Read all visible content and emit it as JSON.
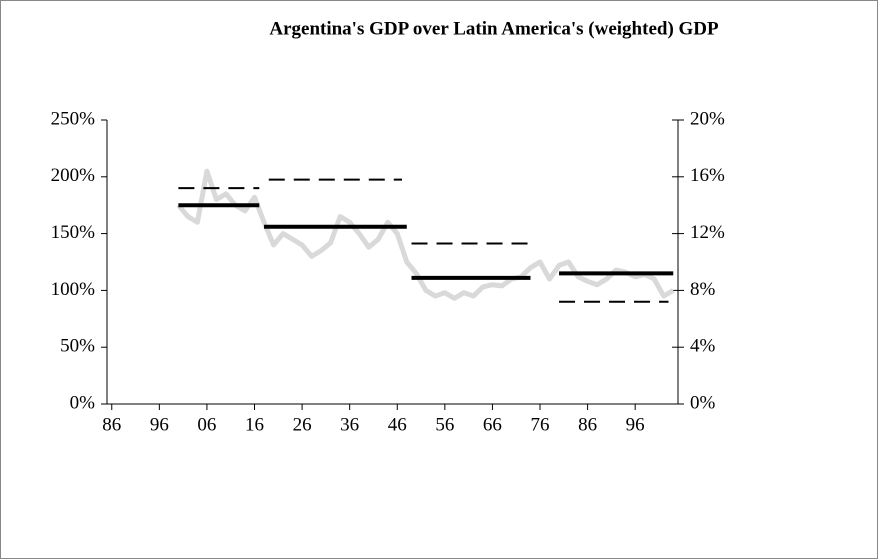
{
  "chart_data": {
    "type": "line",
    "title": "Argentina's GDP over Latin America's (weighted) GDP",
    "xlim": [
      1885,
      2005
    ],
    "xticks": [
      {
        "value": 1886,
        "label": "86"
      },
      {
        "value": 1896,
        "label": "96"
      },
      {
        "value": 1906,
        "label": "06"
      },
      {
        "value": 1916,
        "label": "16"
      },
      {
        "value": 1926,
        "label": "26"
      },
      {
        "value": 1936,
        "label": "36"
      },
      {
        "value": 1946,
        "label": "46"
      },
      {
        "value": 1956,
        "label": "56"
      },
      {
        "value": 1966,
        "label": "66"
      },
      {
        "value": 1976,
        "label": "76"
      },
      {
        "value": 1986,
        "label": "86"
      },
      {
        "value": 1996,
        "label": "96"
      }
    ],
    "ylim": [
      0,
      250
    ],
    "yticks": [
      {
        "value": 0,
        "label": "0%"
      },
      {
        "value": 50,
        "label": "50%"
      },
      {
        "value": 100,
        "label": "100%"
      },
      {
        "value": 150,
        "label": "150%"
      },
      {
        "value": 200,
        "label": "200%"
      },
      {
        "value": 250,
        "label": "250%"
      }
    ],
    "y2lim": [
      0,
      20
    ],
    "y2ticks": [
      {
        "value": 0,
        "label": "0%"
      },
      {
        "value": 4,
        "label": "4%"
      },
      {
        "value": 8,
        "label": "8%"
      },
      {
        "value": 12,
        "label": "12%"
      },
      {
        "value": 16,
        "label": "16%"
      },
      {
        "value": 20,
        "label": "20%"
      }
    ],
    "series": [
      {
        "color": "#d9d9d9",
        "width": 5,
        "x": [
          1900,
          1902,
          1904,
          1906,
          1908,
          1910,
          1912,
          1914,
          1916,
          1918,
          1920,
          1922,
          1924,
          1926,
          1928,
          1930,
          1932,
          1934,
          1936,
          1938,
          1940,
          1942,
          1944,
          1946,
          1948,
          1950,
          1952,
          1954,
          1956,
          1958,
          1960,
          1962,
          1964,
          1966,
          1968,
          1970,
          1972,
          1974,
          1976,
          1978,
          1980,
          1982,
          1984,
          1986,
          1988,
          1990,
          1992,
          1994,
          1996,
          1998,
          2000,
          2002,
          2004
        ],
        "values": [
          175,
          165,
          160,
          205,
          180,
          185,
          175,
          170,
          182,
          160,
          140,
          150,
          145,
          140,
          130,
          135,
          142,
          165,
          160,
          150,
          138,
          145,
          160,
          150,
          125,
          115,
          100,
          95,
          98,
          93,
          98,
          95,
          103,
          105,
          104,
          110,
          112,
          120,
          125,
          110,
          122,
          125,
          112,
          108,
          105,
          110,
          118,
          116,
          112,
          114,
          110,
          95,
          100
        ]
      },
      {
        "color": "#000000",
        "width": 4,
        "style": "segments",
        "starts": [
          1900,
          1918,
          1949,
          1980
        ],
        "ends": [
          1917,
          1948,
          1974,
          2004
        ],
        "values": [
          175,
          156,
          111,
          115
        ]
      },
      {
        "color": "#000000",
        "width": 2,
        "style": "segments",
        "dash": true,
        "axis": "y2",
        "starts": [
          1900,
          1919,
          1949,
          1980
        ],
        "ends": [
          1917,
          1947,
          1974,
          2003
        ],
        "values": [
          15.2,
          15.8,
          11.3,
          7.2
        ]
      }
    ]
  }
}
